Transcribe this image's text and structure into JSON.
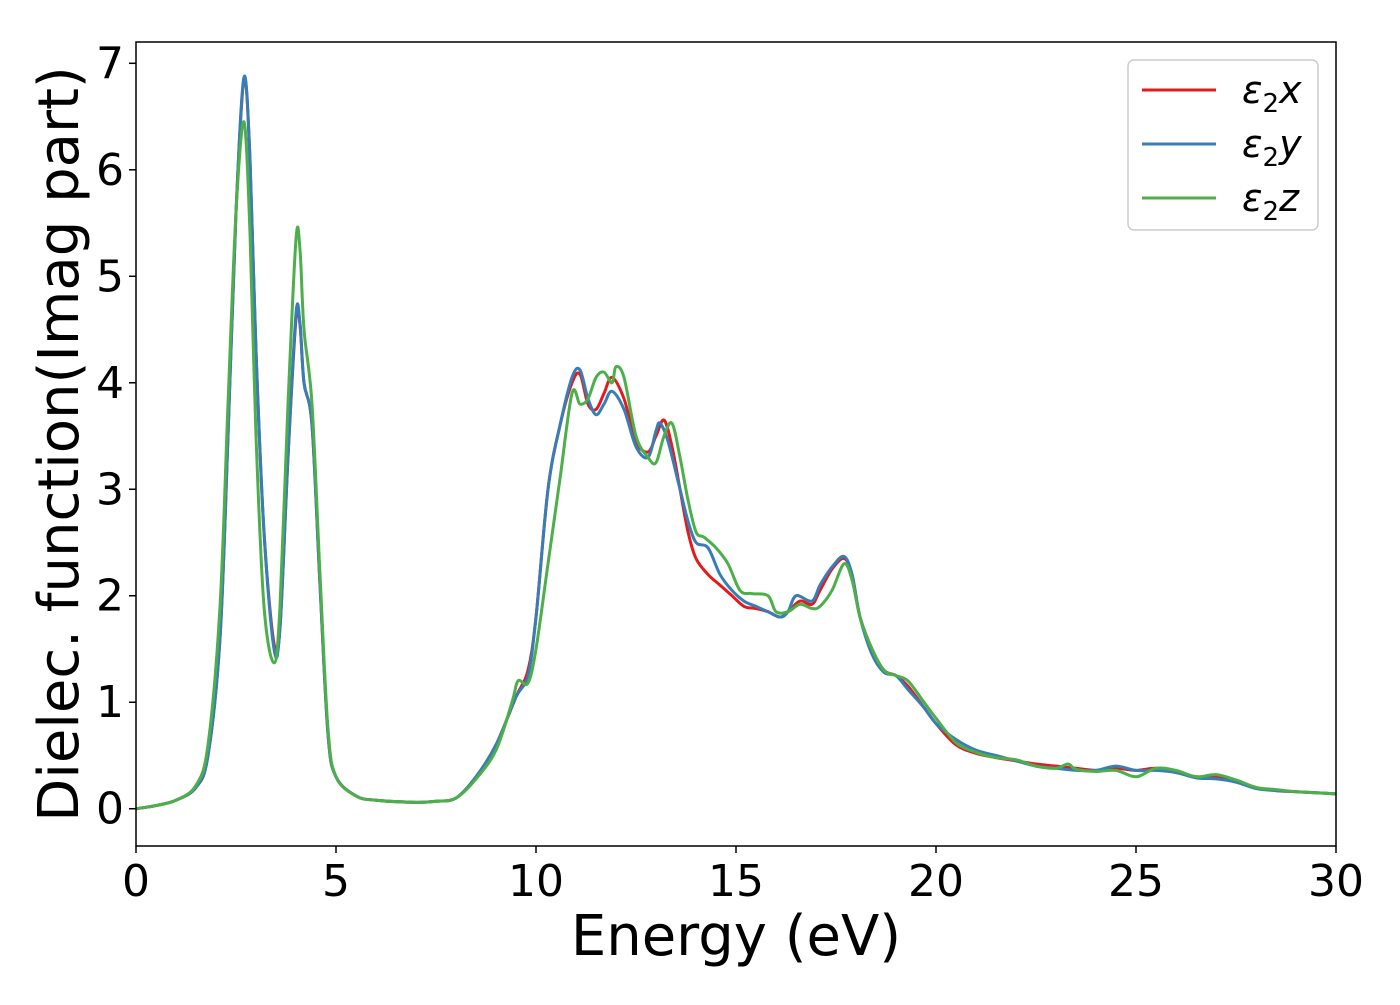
{
  "chart_data": {
    "type": "line",
    "title": "",
    "xlabel": "Energy (eV)",
    "ylabel": "Dielec. function(Imag part)",
    "xlim": [
      0,
      30
    ],
    "ylim": [
      -0.35,
      7.2
    ],
    "xticks": [
      0,
      5,
      10,
      15,
      20,
      25,
      30
    ],
    "yticks": [
      0,
      1,
      2,
      3,
      4,
      5,
      6,
      7
    ],
    "grid": false,
    "legend_position": "upper right",
    "series": [
      {
        "name": "ε2x",
        "base": "ε",
        "sub": "2",
        "var": "x",
        "color": "#e41a1c",
        "points": [
          [
            0,
            0.0
          ],
          [
            0.5,
            0.03
          ],
          [
            1.0,
            0.08
          ],
          [
            1.5,
            0.2
          ],
          [
            1.8,
            0.5
          ],
          [
            2.1,
            1.6
          ],
          [
            2.3,
            3.5
          ],
          [
            2.5,
            5.6
          ],
          [
            2.7,
            6.85
          ],
          [
            2.85,
            6.1
          ],
          [
            3.0,
            4.3
          ],
          [
            3.2,
            2.6
          ],
          [
            3.45,
            1.55
          ],
          [
            3.6,
            1.7
          ],
          [
            3.8,
            3.3
          ],
          [
            4.0,
            4.6
          ],
          [
            4.1,
            4.55
          ],
          [
            4.2,
            4.0
          ],
          [
            4.4,
            3.6
          ],
          [
            4.6,
            2.1
          ],
          [
            4.8,
            0.7
          ],
          [
            5.0,
            0.3
          ],
          [
            5.5,
            0.12
          ],
          [
            6.0,
            0.08
          ],
          [
            7.0,
            0.06
          ],
          [
            7.5,
            0.07
          ],
          [
            8.0,
            0.1
          ],
          [
            8.5,
            0.3
          ],
          [
            9.0,
            0.6
          ],
          [
            9.5,
            1.05
          ],
          [
            9.8,
            1.3
          ],
          [
            10.0,
            1.8
          ],
          [
            10.3,
            3.0
          ],
          [
            10.6,
            3.6
          ],
          [
            10.9,
            4.0
          ],
          [
            11.1,
            4.08
          ],
          [
            11.3,
            3.8
          ],
          [
            11.5,
            3.75
          ],
          [
            11.7,
            3.9
          ],
          [
            11.9,
            4.05
          ],
          [
            12.2,
            3.85
          ],
          [
            12.5,
            3.45
          ],
          [
            12.8,
            3.35
          ],
          [
            13.0,
            3.5
          ],
          [
            13.2,
            3.65
          ],
          [
            13.4,
            3.4
          ],
          [
            13.6,
            3.0
          ],
          [
            13.8,
            2.6
          ],
          [
            14.0,
            2.35
          ],
          [
            14.3,
            2.2
          ],
          [
            14.6,
            2.1
          ],
          [
            14.9,
            2.0
          ],
          [
            15.2,
            1.9
          ],
          [
            15.5,
            1.88
          ],
          [
            15.8,
            1.85
          ],
          [
            16.1,
            1.8
          ],
          [
            16.3,
            1.85
          ],
          [
            16.6,
            1.95
          ],
          [
            16.9,
            1.92
          ],
          [
            17.1,
            2.05
          ],
          [
            17.4,
            2.25
          ],
          [
            17.7,
            2.35
          ],
          [
            17.9,
            2.2
          ],
          [
            18.1,
            1.8
          ],
          [
            18.4,
            1.5
          ],
          [
            18.7,
            1.3
          ],
          [
            19.0,
            1.25
          ],
          [
            19.3,
            1.15
          ],
          [
            19.7,
            0.95
          ],
          [
            20.0,
            0.8
          ],
          [
            20.5,
            0.6
          ],
          [
            21.0,
            0.52
          ],
          [
            21.5,
            0.48
          ],
          [
            22.0,
            0.45
          ],
          [
            22.5,
            0.42
          ],
          [
            23.0,
            0.4
          ],
          [
            23.5,
            0.38
          ],
          [
            24.0,
            0.36
          ],
          [
            24.5,
            0.38
          ],
          [
            25.0,
            0.36
          ],
          [
            25.5,
            0.38
          ],
          [
            26.0,
            0.34
          ],
          [
            26.5,
            0.3
          ],
          [
            27.0,
            0.3
          ],
          [
            27.5,
            0.26
          ],
          [
            28.0,
            0.2
          ],
          [
            28.5,
            0.17
          ],
          [
            29.0,
            0.16
          ],
          [
            29.5,
            0.15
          ],
          [
            30.0,
            0.14
          ]
        ]
      },
      {
        "name": "ε2y",
        "base": "ε",
        "sub": "2",
        "var": "y",
        "color": "#377eb8",
        "points": [
          [
            0,
            0.0
          ],
          [
            0.5,
            0.03
          ],
          [
            1.0,
            0.08
          ],
          [
            1.5,
            0.2
          ],
          [
            1.8,
            0.5
          ],
          [
            2.1,
            1.6
          ],
          [
            2.3,
            3.5
          ],
          [
            2.5,
            5.6
          ],
          [
            2.7,
            6.87
          ],
          [
            2.85,
            6.1
          ],
          [
            3.0,
            4.3
          ],
          [
            3.2,
            2.6
          ],
          [
            3.45,
            1.5
          ],
          [
            3.6,
            1.7
          ],
          [
            3.8,
            3.3
          ],
          [
            4.0,
            4.65
          ],
          [
            4.1,
            4.55
          ],
          [
            4.2,
            4.0
          ],
          [
            4.4,
            3.6
          ],
          [
            4.6,
            2.1
          ],
          [
            4.8,
            0.7
          ],
          [
            5.0,
            0.3
          ],
          [
            5.5,
            0.12
          ],
          [
            6.0,
            0.08
          ],
          [
            7.0,
            0.06
          ],
          [
            7.5,
            0.07
          ],
          [
            8.0,
            0.1
          ],
          [
            8.5,
            0.3
          ],
          [
            9.0,
            0.6
          ],
          [
            9.5,
            1.05
          ],
          [
            9.8,
            1.25
          ],
          [
            10.0,
            1.8
          ],
          [
            10.3,
            3.0
          ],
          [
            10.6,
            3.6
          ],
          [
            10.9,
            4.05
          ],
          [
            11.1,
            4.12
          ],
          [
            11.3,
            3.85
          ],
          [
            11.5,
            3.7
          ],
          [
            11.7,
            3.8
          ],
          [
            11.9,
            3.92
          ],
          [
            12.2,
            3.75
          ],
          [
            12.5,
            3.4
          ],
          [
            12.8,
            3.3
          ],
          [
            13.0,
            3.55
          ],
          [
            13.1,
            3.62
          ],
          [
            13.3,
            3.45
          ],
          [
            13.6,
            3.0
          ],
          [
            13.8,
            2.7
          ],
          [
            14.0,
            2.5
          ],
          [
            14.3,
            2.45
          ],
          [
            14.6,
            2.2
          ],
          [
            14.9,
            2.05
          ],
          [
            15.2,
            1.95
          ],
          [
            15.5,
            1.9
          ],
          [
            15.8,
            1.85
          ],
          [
            16.1,
            1.8
          ],
          [
            16.3,
            1.85
          ],
          [
            16.5,
            2.0
          ],
          [
            16.9,
            1.95
          ],
          [
            17.1,
            2.1
          ],
          [
            17.4,
            2.27
          ],
          [
            17.7,
            2.37
          ],
          [
            17.9,
            2.2
          ],
          [
            18.1,
            1.8
          ],
          [
            18.4,
            1.45
          ],
          [
            18.7,
            1.28
          ],
          [
            19.0,
            1.25
          ],
          [
            19.3,
            1.12
          ],
          [
            19.7,
            0.95
          ],
          [
            20.0,
            0.8
          ],
          [
            20.5,
            0.65
          ],
          [
            21.0,
            0.55
          ],
          [
            21.5,
            0.5
          ],
          [
            22.0,
            0.45
          ],
          [
            22.5,
            0.4
          ],
          [
            23.0,
            0.38
          ],
          [
            23.5,
            0.36
          ],
          [
            24.0,
            0.36
          ],
          [
            24.5,
            0.4
          ],
          [
            25.0,
            0.36
          ],
          [
            25.5,
            0.36
          ],
          [
            26.0,
            0.34
          ],
          [
            26.5,
            0.29
          ],
          [
            27.0,
            0.28
          ],
          [
            27.5,
            0.25
          ],
          [
            28.0,
            0.19
          ],
          [
            28.5,
            0.17
          ],
          [
            29.0,
            0.16
          ],
          [
            29.5,
            0.15
          ],
          [
            30.0,
            0.14
          ]
        ]
      },
      {
        "name": "ε2z",
        "base": "ε",
        "sub": "2",
        "var": "z",
        "color": "#4daf4a",
        "points": [
          [
            0,
            0.0
          ],
          [
            0.5,
            0.03
          ],
          [
            1.0,
            0.08
          ],
          [
            1.5,
            0.22
          ],
          [
            1.8,
            0.6
          ],
          [
            2.1,
            1.9
          ],
          [
            2.3,
            3.8
          ],
          [
            2.5,
            5.6
          ],
          [
            2.7,
            6.45
          ],
          [
            2.85,
            5.4
          ],
          [
            3.0,
            3.5
          ],
          [
            3.2,
            1.9
          ],
          [
            3.45,
            1.37
          ],
          [
            3.6,
            1.9
          ],
          [
            3.8,
            3.8
          ],
          [
            4.0,
            5.35
          ],
          [
            4.1,
            5.25
          ],
          [
            4.2,
            4.5
          ],
          [
            4.4,
            3.8
          ],
          [
            4.6,
            2.2
          ],
          [
            4.8,
            0.75
          ],
          [
            5.0,
            0.3
          ],
          [
            5.5,
            0.12
          ],
          [
            6.0,
            0.08
          ],
          [
            7.0,
            0.06
          ],
          [
            7.5,
            0.07
          ],
          [
            8.0,
            0.1
          ],
          [
            8.5,
            0.28
          ],
          [
            9.0,
            0.55
          ],
          [
            9.4,
            1.0
          ],
          [
            9.55,
            1.2
          ],
          [
            9.8,
            1.18
          ],
          [
            10.0,
            1.5
          ],
          [
            10.3,
            2.3
          ],
          [
            10.6,
            3.1
          ],
          [
            10.9,
            3.9
          ],
          [
            11.1,
            3.8
          ],
          [
            11.3,
            3.85
          ],
          [
            11.5,
            4.05
          ],
          [
            11.7,
            4.1
          ],
          [
            11.9,
            4.0
          ],
          [
            12.0,
            4.15
          ],
          [
            12.2,
            4.05
          ],
          [
            12.5,
            3.5
          ],
          [
            12.8,
            3.3
          ],
          [
            13.0,
            3.25
          ],
          [
            13.2,
            3.5
          ],
          [
            13.4,
            3.62
          ],
          [
            13.6,
            3.3
          ],
          [
            13.8,
            2.9
          ],
          [
            14.0,
            2.6
          ],
          [
            14.2,
            2.55
          ],
          [
            14.5,
            2.45
          ],
          [
            14.8,
            2.3
          ],
          [
            15.1,
            2.05
          ],
          [
            15.4,
            2.02
          ],
          [
            15.8,
            2.0
          ],
          [
            16.0,
            1.85
          ],
          [
            16.3,
            1.85
          ],
          [
            16.6,
            1.92
          ],
          [
            16.9,
            1.88
          ],
          [
            17.1,
            1.9
          ],
          [
            17.4,
            2.05
          ],
          [
            17.7,
            2.3
          ],
          [
            17.9,
            2.15
          ],
          [
            18.1,
            1.8
          ],
          [
            18.4,
            1.5
          ],
          [
            18.7,
            1.3
          ],
          [
            19.0,
            1.25
          ],
          [
            19.3,
            1.2
          ],
          [
            19.7,
            1.0
          ],
          [
            20.0,
            0.85
          ],
          [
            20.5,
            0.62
          ],
          [
            21.0,
            0.53
          ],
          [
            21.5,
            0.48
          ],
          [
            22.0,
            0.46
          ],
          [
            22.5,
            0.4
          ],
          [
            23.0,
            0.38
          ],
          [
            23.3,
            0.42
          ],
          [
            23.5,
            0.37
          ],
          [
            24.0,
            0.35
          ],
          [
            24.5,
            0.36
          ],
          [
            25.0,
            0.3
          ],
          [
            25.5,
            0.38
          ],
          [
            26.0,
            0.36
          ],
          [
            26.5,
            0.3
          ],
          [
            27.0,
            0.32
          ],
          [
            27.5,
            0.27
          ],
          [
            28.0,
            0.2
          ],
          [
            28.5,
            0.18
          ],
          [
            29.0,
            0.16
          ],
          [
            29.5,
            0.15
          ],
          [
            30.0,
            0.14
          ]
        ]
      }
    ]
  }
}
